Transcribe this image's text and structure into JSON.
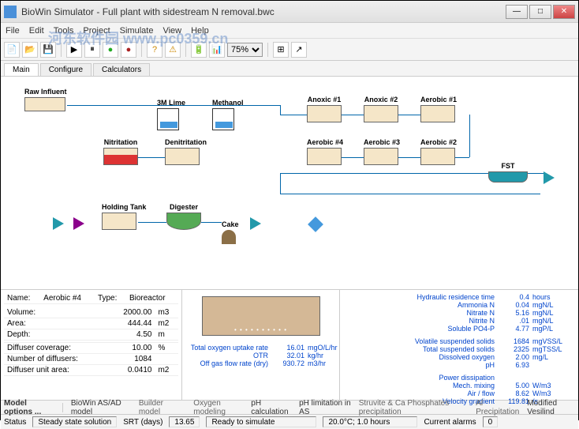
{
  "window": {
    "title": "BioWin Simulator - Full plant with sidestream N removal.bwc"
  },
  "menu": {
    "items": [
      "File",
      "Edit",
      "Tools",
      "Project",
      "Simulate",
      "View",
      "Help"
    ]
  },
  "watermark": "河东软件园 www.pc0359.cn",
  "toolbar": {
    "zoom": "75%"
  },
  "tabs": {
    "items": [
      "Main",
      "Configure",
      "Calculators"
    ],
    "active": 0
  },
  "flowsheet": {
    "units": {
      "raw_influent": "Raw Influent",
      "lime": "3M Lime",
      "methanol": "Methanol",
      "nitritation": "Nitritation",
      "denitritation": "Denitritation",
      "holding": "Holding Tank",
      "digester": "Digester",
      "cake": "Cake",
      "anoxic1": "Anoxic #1",
      "anoxic2": "Anoxic #2",
      "aerobic1": "Aerobic #1",
      "aerobic2": "Aerobic #2",
      "aerobic3": "Aerobic #3",
      "aerobic4": "Aerobic #4",
      "fst": "FST"
    }
  },
  "selected": {
    "name_label": "Name:",
    "name": "Aerobic #4",
    "type_label": "Type:",
    "type": "Bioreactor",
    "props": [
      {
        "label": "Volume:",
        "value": "2000.00",
        "unit": "m3"
      },
      {
        "label": "Area:",
        "value": "444.44",
        "unit": "m2"
      },
      {
        "label": "Depth:",
        "value": "4.50",
        "unit": "m"
      },
      {
        "label": "",
        "value": "",
        "unit": ""
      },
      {
        "label": "Diffuser coverage:",
        "value": "10.00",
        "unit": "%"
      },
      {
        "label": "Number of diffusers:",
        "value": "1084",
        "unit": ""
      },
      {
        "label": "Diffuser unit area:",
        "value": "0.0410",
        "unit": "m2"
      }
    ]
  },
  "center_metrics": [
    {
      "label": "Total oxygen uptake rate",
      "value": "16.01",
      "unit": "mgO/L/hr"
    },
    {
      "label": "OTR",
      "value": "32.01",
      "unit": "kg/hr"
    },
    {
      "label": "Off gas flow rate (dry)",
      "value": "930.72",
      "unit": "m3/hr"
    }
  ],
  "right_metrics": {
    "group1": [
      {
        "label": "Hydraulic residence time",
        "value": "0.4",
        "unit": "hours"
      },
      {
        "label": "Ammonia N",
        "value": "0.04",
        "unit": "mgN/L"
      },
      {
        "label": "Nitrate N",
        "value": "5.16",
        "unit": "mgN/L"
      },
      {
        "label": "Nitrite N",
        "value": ".01",
        "unit": "mgN/L"
      },
      {
        "label": "Soluble PO4-P",
        "value": "4.77",
        "unit": "mgP/L"
      }
    ],
    "group2": [
      {
        "label": "Volatile suspended solids",
        "value": "1684",
        "unit": "mgVSS/L"
      },
      {
        "label": "Total suspended solids",
        "value": "2325",
        "unit": "mgTSS/L"
      },
      {
        "label": "Dissolved oxygen",
        "value": "2.00",
        "unit": "mg/L"
      },
      {
        "label": "pH",
        "value": "6.93",
        "unit": ""
      }
    ],
    "group3_title": "Power dissipation",
    "group3": [
      {
        "label": "Mech. mixing",
        "value": "5.00",
        "unit": "W/m3"
      },
      {
        "label": "Air / flow",
        "value": "8.62",
        "unit": "W/m3"
      },
      {
        "label": "Velocity gradient",
        "value": "119.81",
        "unit": "/s"
      }
    ]
  },
  "modelbar": {
    "model_options": "Model options ...",
    "biowin": "BioWin AS/AD model",
    "builder": "Builder model",
    "oxygen": "Oxygen modeling",
    "ph": "pH calculation",
    "phlimit": "pH limitation in AS",
    "struvite": "Struvite & Ca Phosphates precipitation",
    "alprecip": "Al Precipitation",
    "vesilind": "Modified Vesilind"
  },
  "statusbar": {
    "status_label": "Status",
    "status_value": "Steady state solution",
    "srt_label": "SRT (days)",
    "srt_value": "13.65",
    "ready": "Ready to simulate",
    "temp": "20.0°C; 1.0 hours",
    "alarms_label": "Current alarms",
    "alarms_value": "0"
  }
}
